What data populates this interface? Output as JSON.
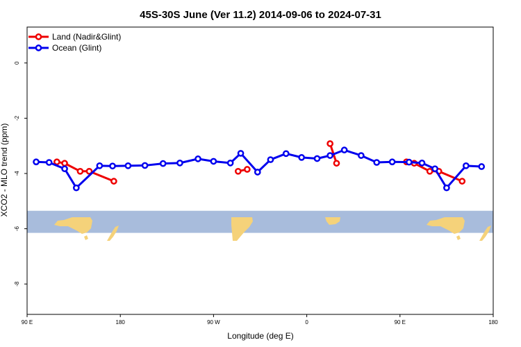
{
  "chart_data": {
    "type": "line",
    "title": "45S-30S June (Ver 11.2)   2014-09-06 to 2024-07-31",
    "xlabel": "Longitude (deg E)",
    "ylabel": "XCO2 - MLO trend (ppm)",
    "xlim": [
      90,
      450
    ],
    "ylim": [
      -9.1,
      1.3
    ],
    "x_ticks": [
      {
        "value": 90,
        "label": "90 E"
      },
      {
        "value": 162,
        "label": "180"
      },
      {
        "value": 234,
        "label": "90 W"
      },
      {
        "value": 306,
        "label": "0"
      },
      {
        "value": 378,
        "label": "90 E"
      },
      {
        "value": 450,
        "label": "180"
      }
    ],
    "y_ticks": [
      {
        "value": 0,
        "label": "0"
      },
      {
        "value": -2,
        "label": "-2"
      },
      {
        "value": -4,
        "label": "-4"
      },
      {
        "value": -6,
        "label": "-6"
      },
      {
        "value": -8,
        "label": "-8"
      }
    ],
    "legend_position": "top-left",
    "grid": false,
    "map_strip": {
      "y_top": -5.35,
      "y_bottom": -6.15,
      "ocean_color": "#a8bcdc",
      "land_color": "#f5d27a"
    },
    "series": [
      {
        "name": "Land (Nadir&Glint)",
        "color": "#ee0000",
        "segments": [
          [
            [
              113,
              -3.58
            ],
            [
              119,
              -3.63
            ],
            [
              131,
              -3.92
            ],
            [
              138,
              -3.92
            ],
            [
              157,
              -4.28
            ]
          ],
          [
            [
              253,
              -3.92
            ],
            [
              260,
              -3.85
            ]
          ],
          [
            [
              324,
              -2.92
            ],
            [
              329,
              -3.63
            ]
          ],
          [
            [
              383,
              -3.58
            ],
            [
              389,
              -3.63
            ],
            [
              401,
              -3.92
            ],
            [
              408,
              -3.92
            ],
            [
              426,
              -4.28
            ]
          ]
        ]
      },
      {
        "name": "Ocean (Glint)",
        "color": "#0000ee",
        "segments": [
          [
            [
              97,
              -3.58
            ],
            [
              107,
              -3.6
            ],
            [
              119,
              -3.83
            ],
            [
              128,
              -4.52
            ],
            [
              146,
              -3.72
            ],
            [
              156,
              -3.73
            ],
            [
              168,
              -3.72
            ],
            [
              181,
              -3.71
            ],
            [
              195,
              -3.64
            ],
            [
              208,
              -3.62
            ],
            [
              222,
              -3.47
            ],
            [
              234,
              -3.56
            ],
            [
              247,
              -3.62
            ],
            [
              255,
              -3.27
            ],
            [
              268,
              -3.95
            ],
            [
              278,
              -3.5
            ],
            [
              290,
              -3.28
            ],
            [
              302,
              -3.42
            ],
            [
              314,
              -3.46
            ],
            [
              324,
              -3.35
            ],
            [
              335,
              -3.15
            ],
            [
              348,
              -3.35
            ],
            [
              360,
              -3.6
            ],
            [
              372,
              -3.58
            ],
            [
              385,
              -3.59
            ],
            [
              395,
              -3.62
            ],
            [
              405,
              -3.83
            ],
            [
              414,
              -4.52
            ],
            [
              429,
              -3.72
            ],
            [
              441,
              -3.75
            ]
          ]
        ]
      }
    ]
  }
}
